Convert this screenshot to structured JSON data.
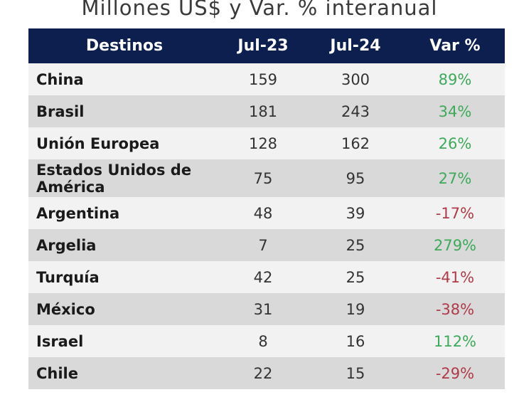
{
  "chart_data": {
    "type": "table",
    "title": "Millones US$ y Var. % interanual",
    "columns": [
      "Destinos",
      "Jul-23",
      "Jul-24",
      "Var %"
    ],
    "rows": [
      {
        "destino": "China",
        "jul23": "159",
        "jul24": "300",
        "var": "89%"
      },
      {
        "destino": "Brasil",
        "jul23": "181",
        "jul24": "243",
        "var": "34%"
      },
      {
        "destino": "Unión Europea",
        "jul23": "128",
        "jul24": "162",
        "var": "26%"
      },
      {
        "destino": "Estados Unidos de América",
        "jul23": "75",
        "jul24": "95",
        "var": "27%"
      },
      {
        "destino": "Argentina",
        "jul23": "48",
        "jul24": "39",
        "var": "-17%"
      },
      {
        "destino": "Argelia",
        "jul23": "7",
        "jul24": "25",
        "var": "279%"
      },
      {
        "destino": "Turquía",
        "jul23": "42",
        "jul24": "25",
        "var": "-41%"
      },
      {
        "destino": "México",
        "jul23": "31",
        "jul24": "19",
        "var": "-38%"
      },
      {
        "destino": "Israel",
        "jul23": "8",
        "jul24": "16",
        "var": "112%"
      },
      {
        "destino": "Chile",
        "jul23": "22",
        "jul24": "15",
        "var": "-29%"
      }
    ]
  },
  "colors": {
    "header_bg": "#0c1f4f",
    "header_text": "#ffffff",
    "row_light": "#f2f2f2",
    "row_dark": "#d9d9d9",
    "positive": "#3daa5a",
    "negative": "#b03a48"
  }
}
